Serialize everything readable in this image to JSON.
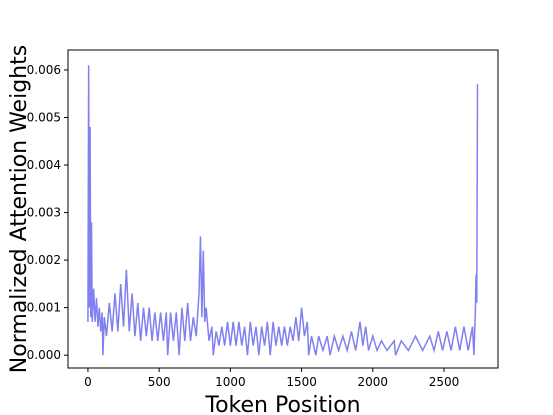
{
  "chart_data": {
    "type": "line",
    "xlabel": "Token Position",
    "ylabel": "Normalized Attention Weights",
    "color": "#8080ee",
    "x": [
      0,
      5,
      10,
      15,
      20,
      25,
      30,
      40,
      50,
      60,
      70,
      80,
      90,
      100,
      105,
      115,
      130,
      150,
      170,
      190,
      210,
      230,
      250,
      270,
      290,
      310,
      330,
      350,
      370,
      390,
      410,
      430,
      450,
      470,
      490,
      510,
      530,
      550,
      560,
      580,
      600,
      620,
      640,
      660,
      680,
      700,
      720,
      740,
      760,
      780,
      790,
      800,
      810,
      820,
      830,
      850,
      870,
      880,
      900,
      920,
      940,
      960,
      980,
      1000,
      1020,
      1040,
      1060,
      1080,
      1100,
      1120,
      1140,
      1160,
      1180,
      1200,
      1220,
      1240,
      1260,
      1280,
      1300,
      1320,
      1340,
      1360,
      1380,
      1400,
      1420,
      1440,
      1460,
      1480,
      1500,
      1520,
      1540,
      1550,
      1570,
      1600,
      1620,
      1650,
      1680,
      1700,
      1730,
      1760,
      1790,
      1820,
      1850,
      1880,
      1910,
      1930,
      1950,
      1970,
      2000,
      2030,
      2060,
      2100,
      2150,
      2160,
      2200,
      2250,
      2300,
      2350,
      2400,
      2430,
      2460,
      2490,
      2520,
      2550,
      2580,
      2610,
      2640,
      2670,
      2700,
      2710,
      2720,
      2725,
      2730,
      2735
    ],
    "values": [
      0.0007,
      0.0061,
      0.001,
      0.0048,
      0.0008,
      0.0028,
      0.0007,
      0.0014,
      0.0007,
      0.0012,
      0.0006,
      0.001,
      0.0005,
      0.0009,
      0.0,
      0.0008,
      0.0004,
      0.0011,
      0.0005,
      0.0013,
      0.0005,
      0.0015,
      0.0006,
      0.0018,
      0.0005,
      0.0013,
      0.0004,
      0.0011,
      0.0003,
      0.001,
      0.0004,
      0.001,
      0.0003,
      0.0009,
      0.0003,
      0.0009,
      0.0003,
      0.0009,
      0.0,
      0.0009,
      0.0003,
      0.0009,
      0.0,
      0.001,
      0.0003,
      0.0011,
      0.0003,
      0.0008,
      0.0004,
      0.0013,
      0.0025,
      0.0008,
      0.0022,
      0.0007,
      0.001,
      0.0003,
      0.0006,
      0.0,
      0.0005,
      0.0002,
      0.0006,
      0.0002,
      0.0007,
      0.0002,
      0.0007,
      0.0002,
      0.0007,
      0.0002,
      0.0006,
      0.0,
      0.0007,
      0.0002,
      0.0006,
      0.0,
      0.0006,
      0.0002,
      0.0007,
      0.0,
      0.0007,
      0.0002,
      0.0006,
      0.0002,
      0.0006,
      0.0002,
      0.0006,
      0.0003,
      0.0008,
      0.0003,
      0.001,
      0.0004,
      0.0007,
      0.0,
      0.0004,
      0.0,
      0.0004,
      0.0001,
      0.0004,
      0.0,
      0.0004,
      0.0001,
      0.0004,
      0.0001,
      0.0005,
      0.0001,
      0.0007,
      0.0002,
      0.0006,
      0.0001,
      0.0004,
      0.0001,
      0.0003,
      0.0001,
      0.0003,
      0.0,
      0.0003,
      0.0001,
      0.0004,
      0.0001,
      0.0004,
      0.0001,
      0.0005,
      0.0001,
      0.0005,
      0.0001,
      0.0006,
      0.0001,
      0.0006,
      0.0001,
      0.0006,
      0.0,
      0.0009,
      0.0017,
      0.0011,
      0.0057
    ],
    "xlim": [
      -140,
      2879
    ],
    "ylim": [
      -0.00027,
      0.00642
    ],
    "xticks": [
      0,
      500,
      1000,
      1500,
      2000,
      2500
    ],
    "yticks": [
      {
        "value": 0,
        "label": "0.000"
      },
      {
        "value": 0.001,
        "label": "0.001"
      },
      {
        "value": 0.002,
        "label": "0.002"
      },
      {
        "value": 0.003,
        "label": "0.003"
      },
      {
        "value": 0.004,
        "label": "0.004"
      },
      {
        "value": 0.005,
        "label": "0.005"
      },
      {
        "value": 0.006,
        "label": "0.006"
      }
    ]
  }
}
